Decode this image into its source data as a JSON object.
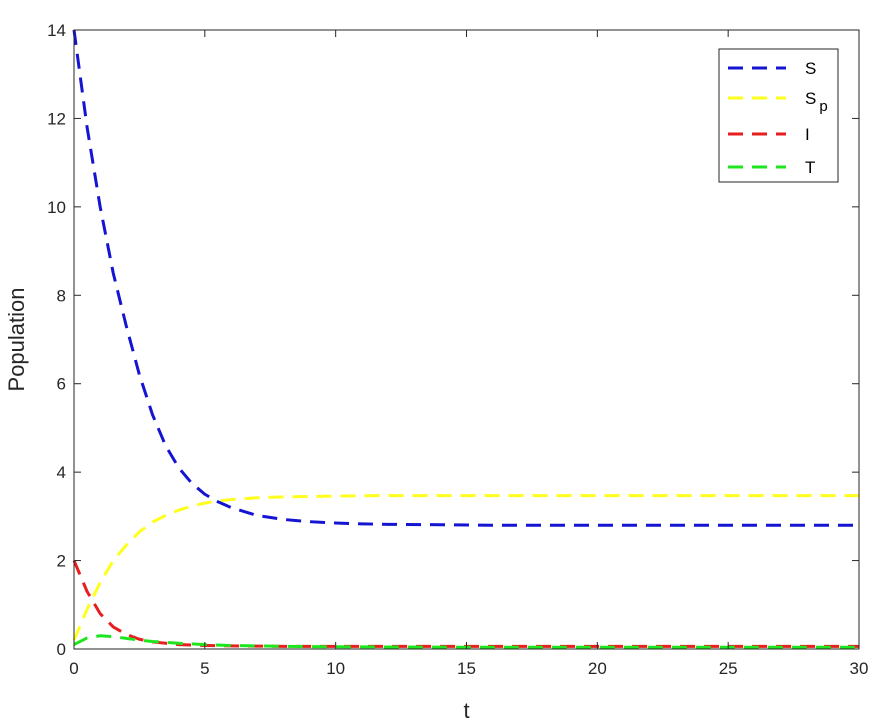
{
  "chart_data": {
    "type": "line",
    "title": "",
    "xlabel": "t",
    "ylabel": "Population",
    "xlim": [
      0,
      30
    ],
    "ylim": [
      0,
      14
    ],
    "xticks": [
      0,
      5,
      10,
      15,
      20,
      25,
      30
    ],
    "yticks": [
      0,
      2,
      4,
      6,
      8,
      10,
      12,
      14
    ],
    "grid": false,
    "legend_position": "top-right",
    "line_style": "dashed",
    "series": [
      {
        "name": "S",
        "color": "#1414d2",
        "x": [
          0,
          0.5,
          1,
          1.5,
          2,
          2.5,
          3,
          3.5,
          4,
          4.5,
          5,
          5.5,
          6,
          7,
          8,
          9,
          10,
          11,
          12,
          14,
          16,
          18,
          20,
          25,
          30
        ],
        "y": [
          14,
          11.8,
          10.0,
          8.5,
          7.3,
          6.2,
          5.3,
          4.6,
          4.1,
          3.75,
          3.5,
          3.33,
          3.2,
          3.02,
          2.93,
          2.88,
          2.85,
          2.83,
          2.82,
          2.81,
          2.8,
          2.8,
          2.8,
          2.8,
          2.8
        ]
      },
      {
        "name": "S",
        "name_subscript": "p",
        "color": "#ffff1e",
        "x": [
          0,
          0.5,
          1,
          1.5,
          2,
          2.5,
          3,
          3.5,
          4,
          4.5,
          5,
          5.5,
          6,
          7,
          8,
          9,
          10,
          12,
          14,
          16,
          20,
          25,
          30
        ],
        "y": [
          0.2,
          0.9,
          1.5,
          2.0,
          2.35,
          2.65,
          2.87,
          3.02,
          3.14,
          3.23,
          3.3,
          3.35,
          3.38,
          3.42,
          3.44,
          3.45,
          3.46,
          3.47,
          3.47,
          3.47,
          3.47,
          3.47,
          3.47
        ]
      },
      {
        "name": "I",
        "color": "#e61e1e",
        "x": [
          0,
          0.5,
          1,
          1.5,
          2,
          2.5,
          3,
          4,
          5,
          6,
          8,
          10,
          15,
          20,
          25,
          30
        ],
        "y": [
          2.0,
          1.3,
          0.8,
          0.5,
          0.33,
          0.22,
          0.16,
          0.1,
          0.08,
          0.07,
          0.06,
          0.06,
          0.06,
          0.06,
          0.06,
          0.06
        ]
      },
      {
        "name": "T",
        "color": "#1ee61e",
        "x": [
          0,
          0.5,
          1,
          1.5,
          2,
          2.5,
          3,
          4,
          5,
          6,
          8,
          10,
          15,
          20,
          25,
          30
        ],
        "y": [
          0.1,
          0.25,
          0.3,
          0.28,
          0.24,
          0.2,
          0.17,
          0.13,
          0.1,
          0.08,
          0.06,
          0.05,
          0.04,
          0.04,
          0.04,
          0.04
        ]
      }
    ]
  }
}
